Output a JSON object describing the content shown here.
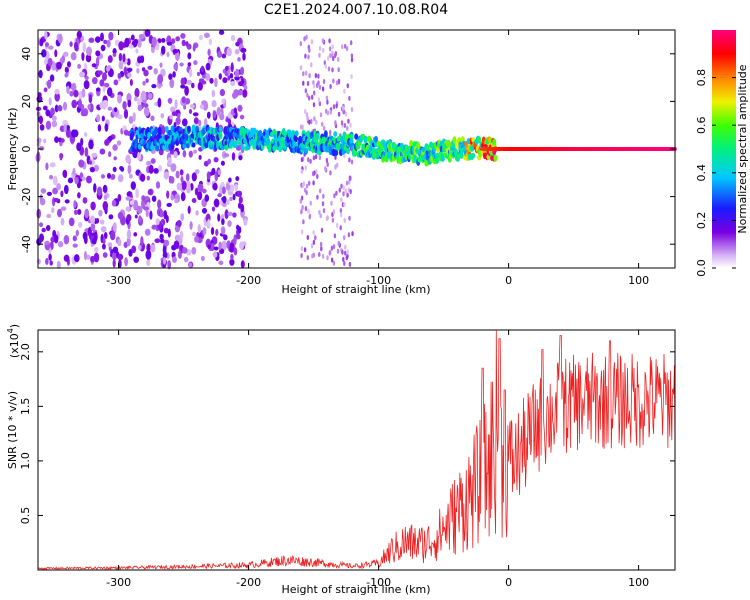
{
  "chart_data": [
    {
      "type": "heatmap",
      "title": "C2E1.2024.007.10.08.R04",
      "xlabel": "Height of straight line (km)",
      "ylabel": "Frequency (Hz)",
      "xlim": [
        -362,
        128
      ],
      "ylim": [
        -50,
        50
      ],
      "x_ticks": [
        -300,
        -200,
        -100,
        0,
        100
      ],
      "x_tick_labels": [
        "-300",
        "-200",
        "-100",
        "0",
        "100"
      ],
      "y_ticks": [
        -40,
        -20,
        0,
        20,
        40
      ],
      "y_tick_labels": [
        "-40",
        "-20",
        "0",
        "20",
        "40"
      ],
      "colorbar": {
        "label": "Normalized spectral amplitude",
        "range": [
          0,
          1
        ],
        "ticks": [
          0.0,
          0.2,
          0.4,
          0.6,
          0.8
        ],
        "tick_labels": [
          "0.0",
          "0.2",
          "0.4",
          "0.6",
          "0.8"
        ],
        "colormap": "rainbow (white-violet-blue-cyan-green-yellow-red-magenta)"
      },
      "ridge": {
        "description": "dominant near-zero-frequency line",
        "points": [
          {
            "x": -280,
            "f": 4,
            "amp": 0.35
          },
          {
            "x": -240,
            "f": 5,
            "amp": 0.4
          },
          {
            "x": -200,
            "f": 4,
            "amp": 0.45
          },
          {
            "x": -160,
            "f": 3,
            "amp": 0.45
          },
          {
            "x": -120,
            "f": 2,
            "amp": 0.5
          },
          {
            "x": -90,
            "f": -1,
            "amp": 0.55
          },
          {
            "x": -60,
            "f": -2,
            "amp": 0.55
          },
          {
            "x": -40,
            "f": 0,
            "amp": 0.6
          },
          {
            "x": -20,
            "f": 0,
            "amp": 0.85
          },
          {
            "x": 0,
            "f": 0,
            "amp": 0.9
          },
          {
            "x": 50,
            "f": 0,
            "amp": 0.95
          },
          {
            "x": 128,
            "f": 0,
            "amp": 1.0
          }
        ]
      }
    },
    {
      "type": "line",
      "xlabel": "Height of straight line (km)",
      "ylabel": "SNR (10 * v/v)",
      "y_multiplier_label": "(x10",
      "y_multiplier_exp": "4",
      "xlim": [
        -362,
        128
      ],
      "ylim": [
        0,
        22000
      ],
      "x_ticks": [
        -300,
        -200,
        -100,
        0,
        100
      ],
      "x_tick_labels": [
        "-300",
        "-200",
        "-100",
        "0",
        "100"
      ],
      "y_ticks": [
        5000,
        10000,
        15000,
        20000
      ],
      "y_tick_labels": [
        "0.5",
        "1.0",
        "1.5",
        "2.0"
      ],
      "color": "#ee2222",
      "series": [
        {
          "envelope_points": [
            {
              "x": -362,
              "y": 150
            },
            {
              "x": -300,
              "y": 200
            },
            {
              "x": -250,
              "y": 300
            },
            {
              "x": -200,
              "y": 450
            },
            {
              "x": -170,
              "y": 900
            },
            {
              "x": -150,
              "y": 700
            },
            {
              "x": -120,
              "y": 350
            },
            {
              "x": -100,
              "y": 600
            },
            {
              "x": -90,
              "y": 1800
            },
            {
              "x": -80,
              "y": 2500
            },
            {
              "x": -65,
              "y": 2400
            },
            {
              "x": -55,
              "y": 3000
            },
            {
              "x": -45,
              "y": 4500
            },
            {
              "x": -35,
              "y": 6000
            },
            {
              "x": -25,
              "y": 7500
            },
            {
              "x": -15,
              "y": 9500
            },
            {
              "x": -10,
              "y": 13000
            },
            {
              "x": -5,
              "y": 10000
            },
            {
              "x": 5,
              "y": 10000
            },
            {
              "x": 20,
              "y": 13000
            },
            {
              "x": 40,
              "y": 15000
            },
            {
              "x": 60,
              "y": 15500
            },
            {
              "x": 80,
              "y": 15500
            },
            {
              "x": 100,
              "y": 15500
            },
            {
              "x": 128,
              "y": 15500
            }
          ],
          "peaks": [
            {
              "x": -7,
              "y": 21200
            },
            {
              "x": -20,
              "y": 18500
            },
            {
              "x": -3,
              "y": 16500
            },
            {
              "x": 40,
              "y": 21500
            },
            {
              "x": 78,
              "y": 21000
            },
            {
              "x": 26,
              "y": 20200
            }
          ]
        }
      ]
    }
  ]
}
